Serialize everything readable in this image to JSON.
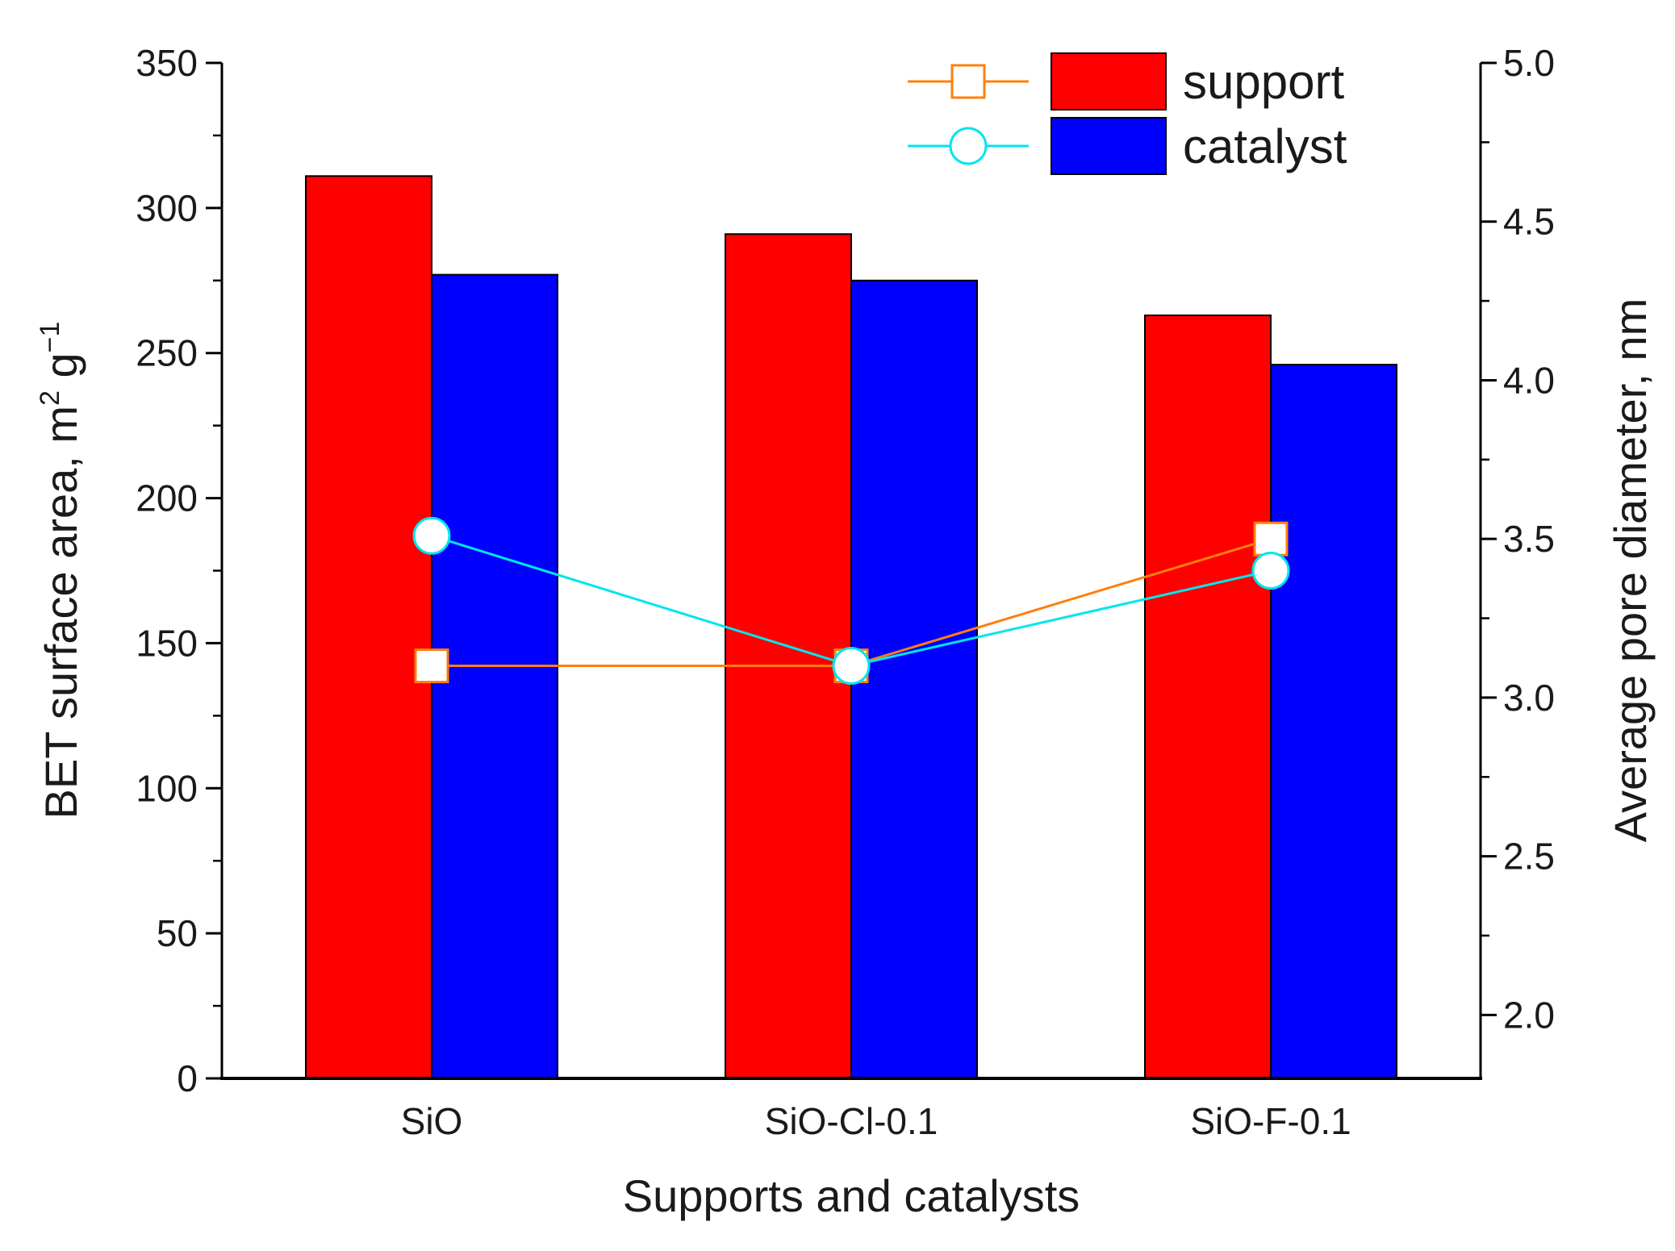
{
  "chart_data": {
    "type": "bar+line",
    "title": "",
    "xlabel": "Supports and catalysts",
    "ylabel_left_main": "BET surface area, m",
    "ylabel_left_sup": "2",
    "ylabel_left_mid": " g",
    "ylabel_left_sup2": "−1",
    "ylabel_right": "Average pore diameter, nm",
    "categories": [
      "SiO",
      "SiO-Cl-0.1",
      "SiO-F-0.1"
    ],
    "ylim_left": [
      0,
      350
    ],
    "ylim_right": [
      1.8,
      5.0
    ],
    "left_ticks": [
      "0",
      "50",
      "100",
      "150",
      "200",
      "250",
      "300",
      "350"
    ],
    "right_ticks": [
      "2.0",
      "2.5",
      "3.0",
      "3.5",
      "4.0",
      "4.5",
      "5.0"
    ],
    "bar_series": [
      {
        "name": "support",
        "color": "#ff0000",
        "values": [
          311,
          291,
          263
        ]
      },
      {
        "name": "catalyst",
        "color": "#0000ff",
        "values": [
          277,
          275,
          246
        ]
      }
    ],
    "line_series": [
      {
        "name": "support",
        "color": "#ff7f0e",
        "marker": "square",
        "values": [
          3.1,
          3.1,
          3.5
        ]
      },
      {
        "name": "catalyst",
        "color": "#00e5ee",
        "marker": "circle",
        "values": [
          3.51,
          3.1,
          3.4
        ]
      }
    ],
    "legend": {
      "placement": "top-right",
      "entries": [
        "support",
        "catalyst"
      ]
    }
  }
}
